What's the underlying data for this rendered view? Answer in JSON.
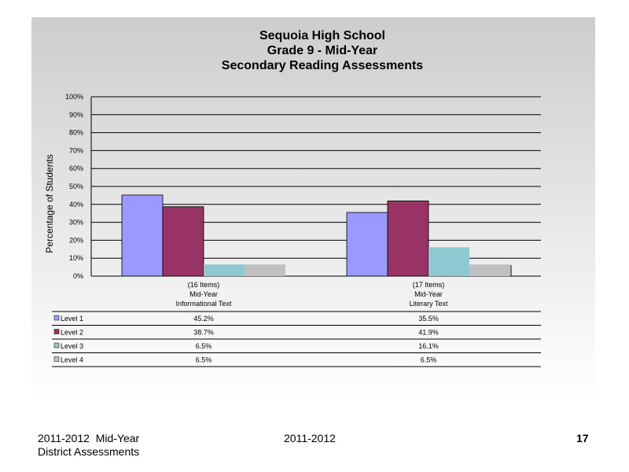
{
  "chart_data": {
    "type": "bar",
    "title": [
      "Sequoia High School",
      "Grade 9 - Mid-Year",
      "Secondary Reading Assessments"
    ],
    "ylabel": "Percentage of Students",
    "ylim": [
      0,
      100
    ],
    "yticks": [
      "0%",
      "10%",
      "20%",
      "30%",
      "40%",
      "50%",
      "60%",
      "70%",
      "80%",
      "90%",
      "100%"
    ],
    "grid": true,
    "legend": "data-table-left",
    "categories": [
      [
        "(16 Items)",
        "Mid-Year",
        "Informational Text"
      ],
      [
        "(17 Items)",
        "Mid-Year",
        "Literary Text"
      ]
    ],
    "series": [
      {
        "name": "Level 1",
        "color": "#9999ff",
        "values": [
          45.2,
          35.5
        ],
        "labels": [
          "45.2%",
          "35.5%"
        ]
      },
      {
        "name": "Level 2",
        "color": "#993366",
        "values": [
          38.7,
          41.9
        ],
        "labels": [
          "38.7%",
          "41.9%"
        ]
      },
      {
        "name": "Level 3",
        "color": "#8ec8d0",
        "values": [
          6.5,
          16.1
        ],
        "labels": [
          "6.5%",
          "16.1%"
        ]
      },
      {
        "name": "Level 4",
        "color": "#c0c0c0",
        "values": [
          6.5,
          6.5
        ],
        "labels": [
          "6.5%",
          "6.5%"
        ]
      }
    ]
  },
  "footer": {
    "left_line1": "2011-2012  Mid-Year",
    "left_line2": "District Assessments",
    "center": "2011-2012",
    "page_number": "17"
  }
}
